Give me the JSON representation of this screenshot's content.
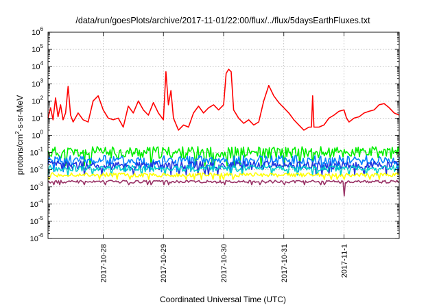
{
  "chart_data": {
    "type": "line",
    "title": "/data/run/goesPlots/archive/2017-11-01/22:00/flux/../flux/5daysEarthFluxes.txt",
    "xlabel": "Coordinated Universal Time (UTC)",
    "ylabel": {
      "prefix": "protons/cm",
      "exponent": "2",
      "suffix": "-s-sr-MeV"
    },
    "yscale": "log",
    "ylim_exponents": [
      -6,
      6
    ],
    "y_tick_labels": [
      {
        "base": "10",
        "exp": "-6"
      },
      {
        "base": "10",
        "exp": "-5"
      },
      {
        "base": "10",
        "exp": "-4"
      },
      {
        "base": "10",
        "exp": "-3"
      },
      {
        "base": "10",
        "exp": "-2"
      },
      {
        "base": "10",
        "exp": "-1"
      },
      {
        "base": "10",
        "exp": "0"
      },
      {
        "base": "10",
        "exp": "1"
      },
      {
        "base": "10",
        "exp": "2"
      },
      {
        "base": "10",
        "exp": "3"
      },
      {
        "base": "10",
        "exp": "4"
      },
      {
        "base": "10",
        "exp": "5"
      },
      {
        "base": "10",
        "exp": "6"
      }
    ],
    "xlim": [
      "2017-10-27T02:00",
      "2017-11-01T22:00"
    ],
    "x_ticks": [
      "2017-10-28",
      "2017-10-29",
      "2017-10-30",
      "2017-10-31",
      "2017-11-1"
    ],
    "grid": true,
    "legend": "none",
    "series": [
      {
        "color": "#ff0000",
        "points": [
          [
            "2017-10-27T02:00",
            10
          ],
          [
            "2017-10-27T03:00",
            40
          ],
          [
            "2017-10-27T04:00",
            8
          ],
          [
            "2017-10-27T05:00",
            150
          ],
          [
            "2017-10-27T06:00",
            12
          ],
          [
            "2017-10-27T07:00",
            60
          ],
          [
            "2017-10-27T08:00",
            8
          ],
          [
            "2017-10-27T09:00",
            20
          ],
          [
            "2017-10-27T10:00",
            700
          ],
          [
            "2017-10-27T11:00",
            15
          ],
          [
            "2017-10-27T12:00",
            6
          ],
          [
            "2017-10-27T14:00",
            20
          ],
          [
            "2017-10-27T16:00",
            8
          ],
          [
            "2017-10-27T18:00",
            6
          ],
          [
            "2017-10-27T20:00",
            100
          ],
          [
            "2017-10-27T22:00",
            200
          ],
          [
            "2017-10-28T00:00",
            30
          ],
          [
            "2017-10-28T02:00",
            10
          ],
          [
            "2017-10-28T04:00",
            8
          ],
          [
            "2017-10-28T06:00",
            10
          ],
          [
            "2017-10-28T08:00",
            3
          ],
          [
            "2017-10-28T10:00",
            50
          ],
          [
            "2017-10-28T12:00",
            20
          ],
          [
            "2017-10-28T14:00",
            100
          ],
          [
            "2017-10-28T16:00",
            30
          ],
          [
            "2017-10-28T18:00",
            15
          ],
          [
            "2017-10-28T20:00",
            80
          ],
          [
            "2017-10-28T22:00",
            20
          ],
          [
            "2017-10-29T00:00",
            8
          ],
          [
            "2017-10-29T01:00",
            5000
          ],
          [
            "2017-10-29T02:00",
            60
          ],
          [
            "2017-10-29T03:00",
            400
          ],
          [
            "2017-10-29T04:00",
            10
          ],
          [
            "2017-10-29T06:00",
            2
          ],
          [
            "2017-10-29T08:00",
            4
          ],
          [
            "2017-10-29T10:00",
            3
          ],
          [
            "2017-10-29T12:00",
            20
          ],
          [
            "2017-10-29T14:00",
            50
          ],
          [
            "2017-10-29T16:00",
            20
          ],
          [
            "2017-10-29T18:00",
            40
          ],
          [
            "2017-10-29T20:00",
            60
          ],
          [
            "2017-10-29T22:00",
            30
          ],
          [
            "2017-10-30T00:00",
            60
          ],
          [
            "2017-10-30T01:00",
            4000
          ],
          [
            "2017-10-30T02:00",
            7000
          ],
          [
            "2017-10-30T03:00",
            5000
          ],
          [
            "2017-10-30T04:00",
            30
          ],
          [
            "2017-10-30T06:00",
            10
          ],
          [
            "2017-10-30T08:00",
            5
          ],
          [
            "2017-10-30T10:00",
            8
          ],
          [
            "2017-10-30T12:00",
            4
          ],
          [
            "2017-10-30T14:00",
            6
          ],
          [
            "2017-10-30T16:00",
            100
          ],
          [
            "2017-10-30T18:00",
            800
          ],
          [
            "2017-10-30T20:00",
            200
          ],
          [
            "2017-10-30T22:00",
            80
          ],
          [
            "2017-10-31T00:00",
            40
          ],
          [
            "2017-10-31T02:00",
            20
          ],
          [
            "2017-10-31T04:00",
            8
          ],
          [
            "2017-10-31T06:00",
            4
          ],
          [
            "2017-10-31T08:00",
            2
          ],
          [
            "2017-10-31T10:00",
            3
          ],
          [
            "2017-10-31T11:00",
            3
          ],
          [
            "2017-10-31T11:30",
            200
          ],
          [
            "2017-10-31T12:00",
            3
          ],
          [
            "2017-10-31T14:00",
            3
          ],
          [
            "2017-10-31T16:00",
            4
          ],
          [
            "2017-10-31T18:00",
            10
          ],
          [
            "2017-10-31T20:00",
            15
          ],
          [
            "2017-10-31T22:00",
            25
          ],
          [
            "2017-11-01T00:00",
            30
          ],
          [
            "2017-11-01T01:00",
            10
          ],
          [
            "2017-11-01T02:00",
            6
          ],
          [
            "2017-11-01T04:00",
            10
          ],
          [
            "2017-11-01T06:00",
            12
          ],
          [
            "2017-11-01T08:00",
            20
          ],
          [
            "2017-11-01T10:00",
            25
          ],
          [
            "2017-11-01T12:00",
            30
          ],
          [
            "2017-11-01T14:00",
            60
          ],
          [
            "2017-11-01T16:00",
            70
          ],
          [
            "2017-11-01T18:00",
            40
          ],
          [
            "2017-11-01T20:00",
            20
          ],
          [
            "2017-11-01T22:00",
            15
          ]
        ]
      },
      {
        "color": "#00ee00",
        "level": 0.1,
        "jitter": 0.35,
        "seed": 11
      },
      {
        "color": "#0080ff",
        "level": 0.035,
        "jitter": 0.3,
        "seed": 23
      },
      {
        "color": "#2233dd",
        "level": 0.018,
        "jitter": 0.25,
        "seed": 37
      },
      {
        "color": "#00cccc",
        "level": 0.012,
        "jitter": 0.18,
        "seed": 53
      },
      {
        "color": "#ffff00",
        "level": 0.005,
        "jitter": 0.12,
        "seed": 71
      },
      {
        "color": "#993366",
        "level": 0.002,
        "jitter": 0.08,
        "seed": 89,
        "dips": [
          [
            "2017-11-01T00:00",
            0.0003
          ]
        ]
      }
    ]
  }
}
